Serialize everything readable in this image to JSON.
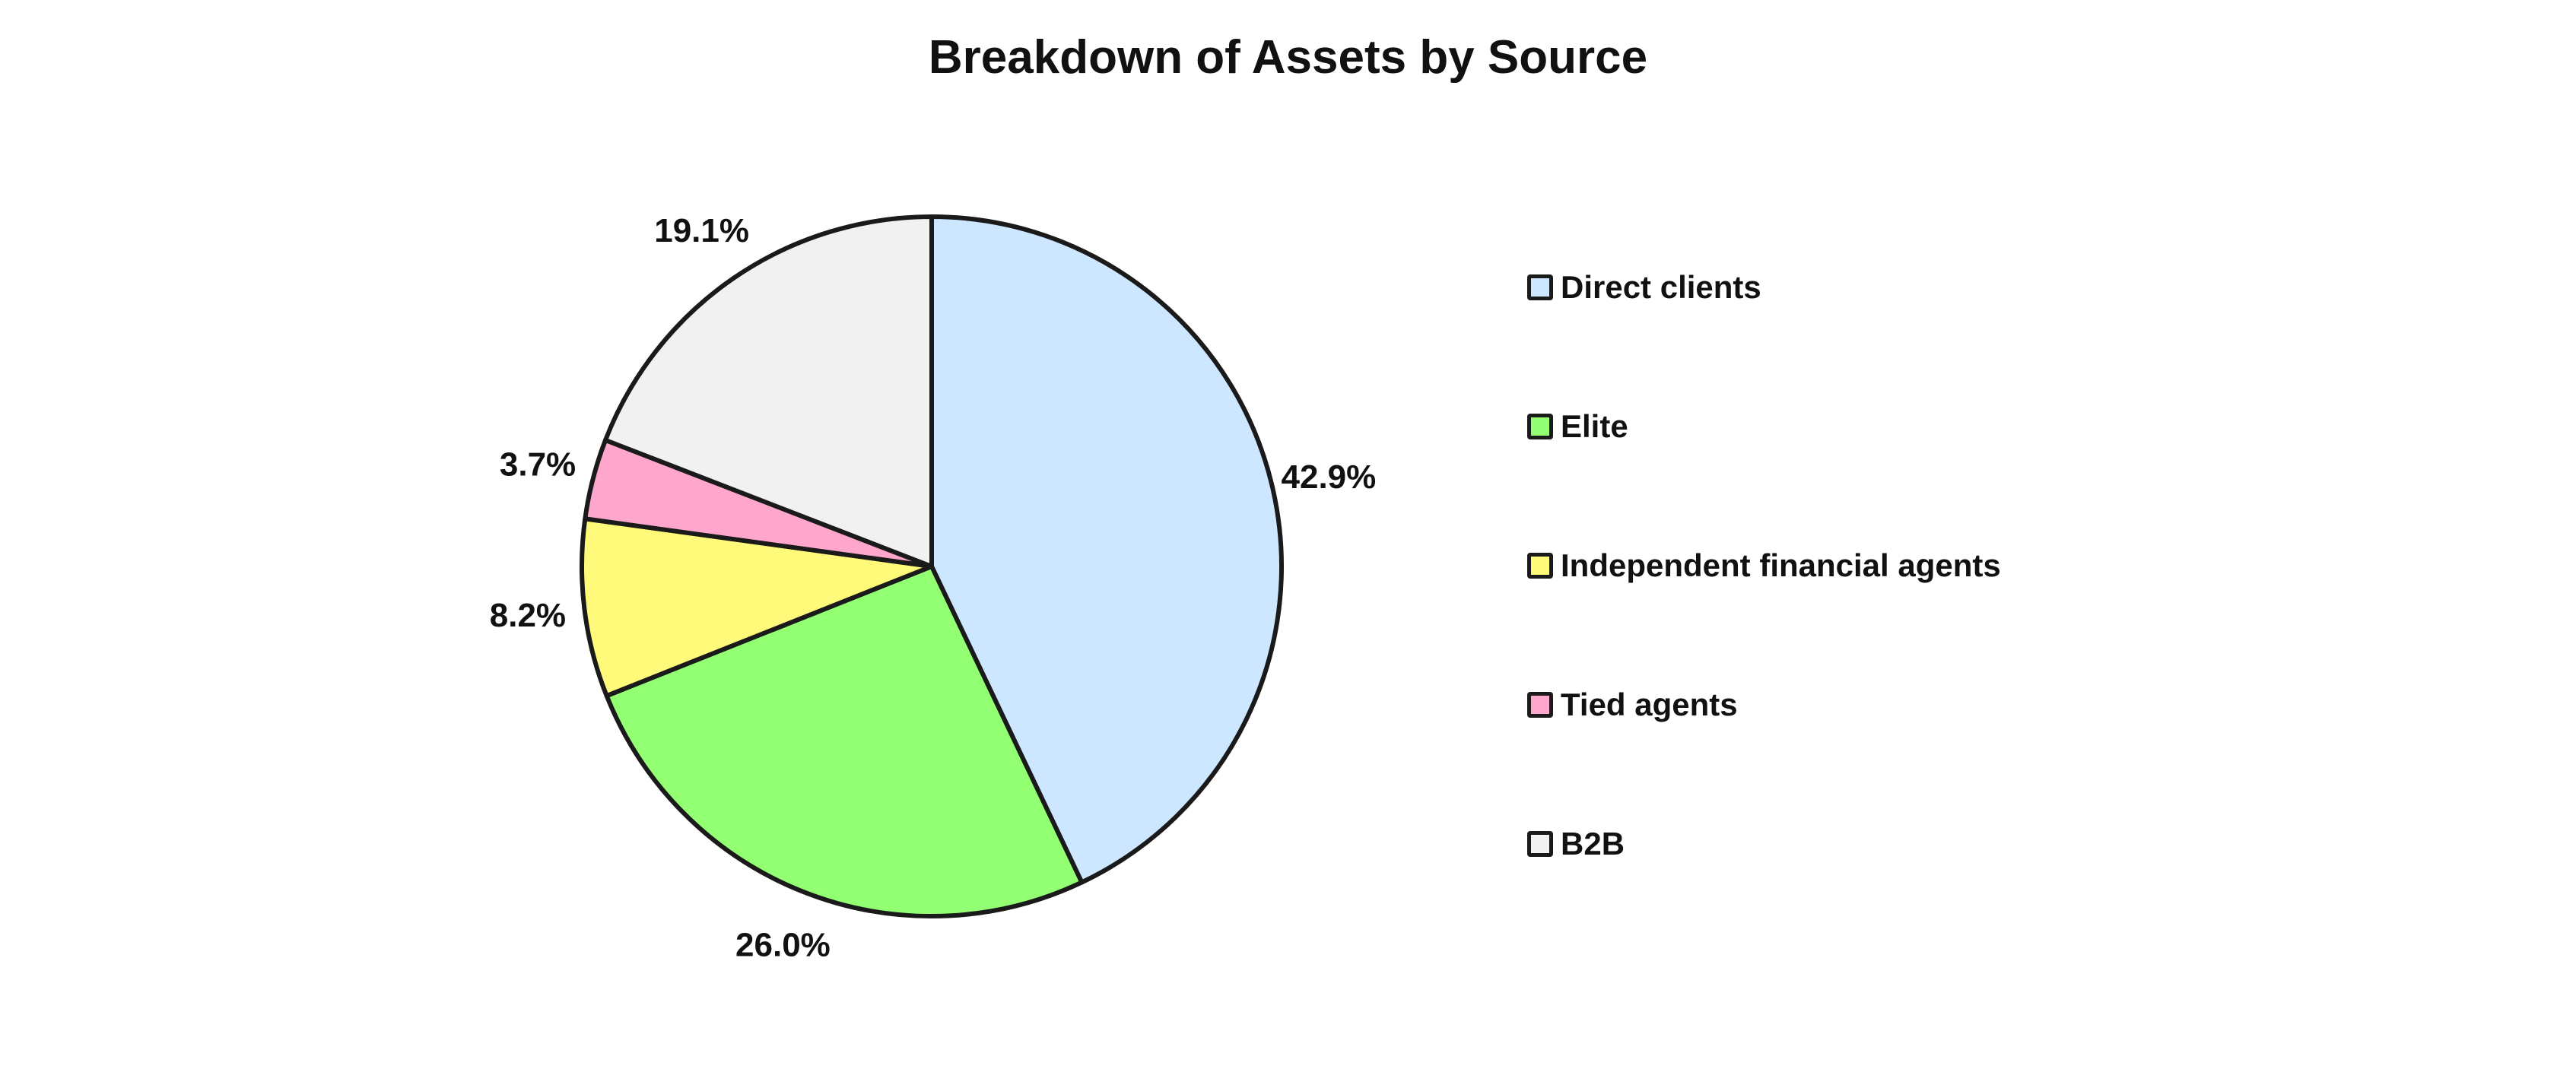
{
  "chart_data": {
    "type": "pie",
    "title": "Breakdown of Assets by Source",
    "categories": [
      "Direct clients",
      "Elite",
      "Independent financial agents",
      "Tied agents",
      "B2B"
    ],
    "values": [
      42.9,
      26.0,
      8.2,
      3.7,
      19.1
    ],
    "value_labels": [
      "42.9%",
      "26.0%",
      "8.2%",
      "3.7%",
      "19.1%"
    ],
    "colors": [
      "#cce7ff",
      "#93ff72",
      "#fffa7a",
      "#ffa6cc",
      "#f1f1f1"
    ],
    "start_angle": "top",
    "direction": "clockwise",
    "legend_position": "right"
  }
}
